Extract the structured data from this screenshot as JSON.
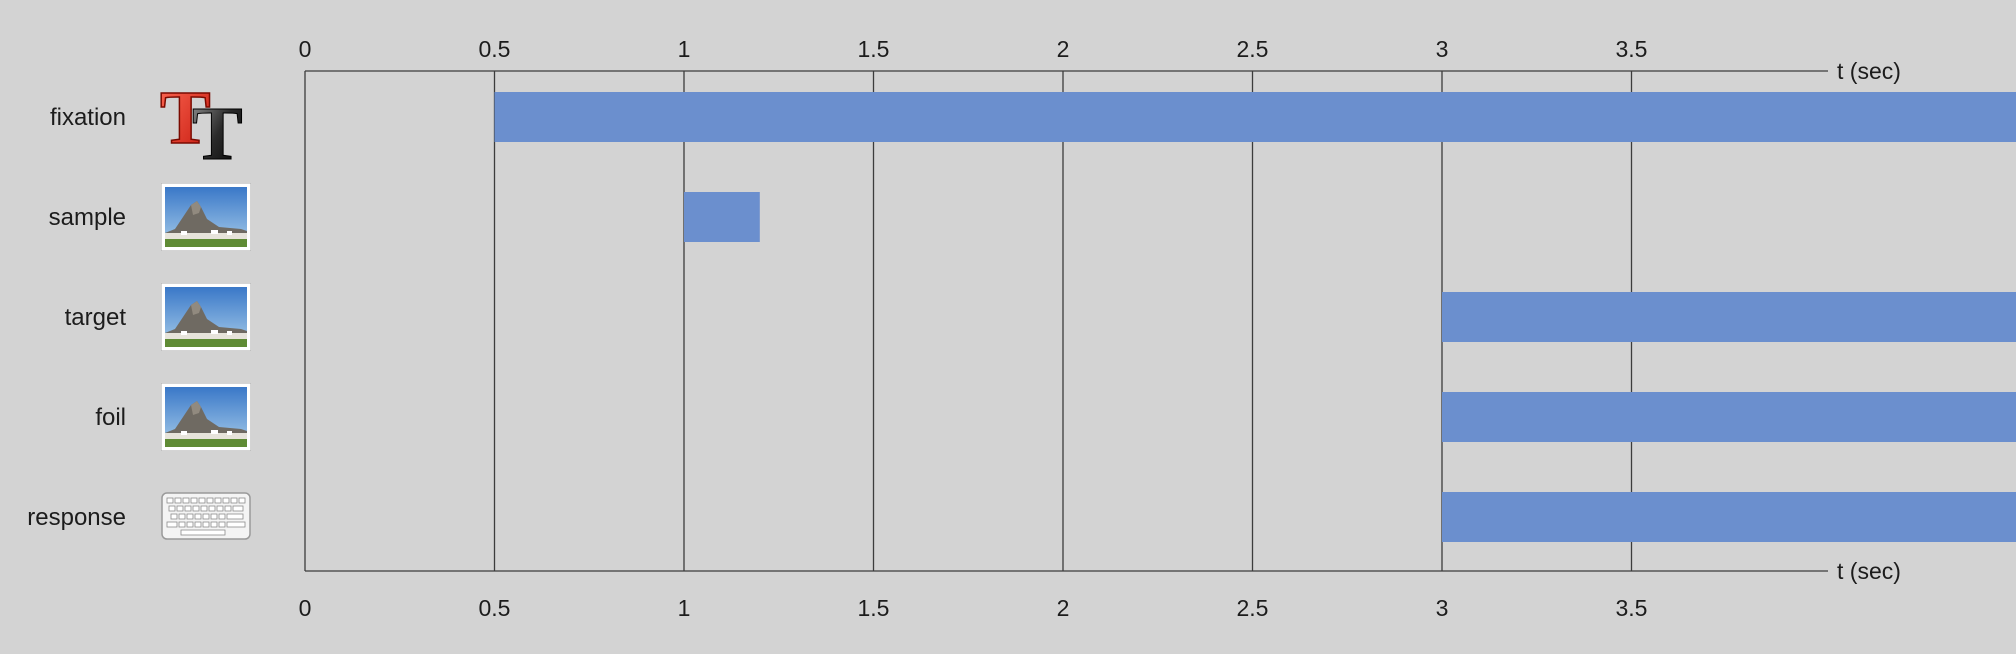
{
  "timeline": {
    "axis_unit_label": "t (sec)",
    "ticks": [
      0,
      0.5,
      1,
      1.5,
      2,
      2.5,
      3,
      3.5
    ],
    "tick_labels": [
      "0",
      "0.5",
      "1",
      "1.5",
      "2",
      "2.5",
      "3",
      "3.5"
    ],
    "bar_color": "#6b8fce",
    "background_color": "#d3d3d3"
  },
  "components": [
    {
      "label": "fixation",
      "icon": "text-stimulus-icon",
      "onset": 0.5,
      "offset": null
    },
    {
      "label": "sample",
      "icon": "image-stimulus-icon",
      "onset": 1,
      "offset": 1.2
    },
    {
      "label": "target",
      "icon": "image-stimulus-icon",
      "onset": 3,
      "offset": null
    },
    {
      "label": "foil",
      "icon": "image-stimulus-icon",
      "onset": 3,
      "offset": null
    },
    {
      "label": "response",
      "icon": "keyboard-icon",
      "onset": 3,
      "offset": null
    }
  ]
}
